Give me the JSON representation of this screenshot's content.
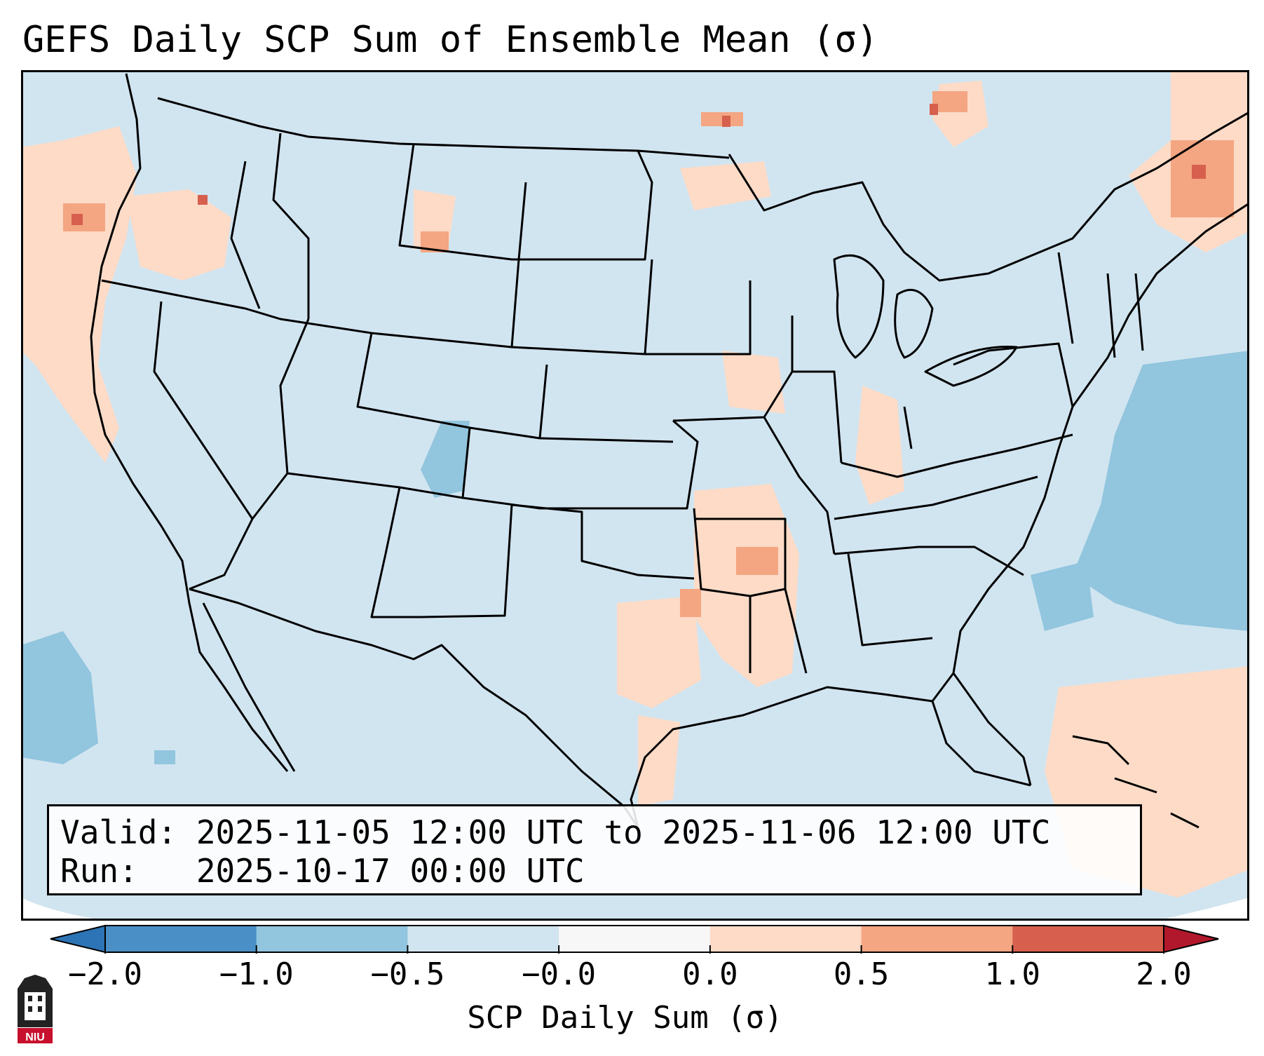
{
  "title": "GEFS Daily SCP Sum of Ensemble Mean (σ)",
  "info": {
    "valid": "Valid: 2025-11-05 12:00 UTC to 2025-11-06 12:00 UTC",
    "run": "Run:   2025-10-17 00:00 UTC"
  },
  "colorbar": {
    "label": "SCP Daily Sum (σ)",
    "ticks": [
      "−2.0",
      "−1.0",
      "−0.5",
      "−0.0",
      "0.0",
      "0.5",
      "1.0",
      "2.0"
    ],
    "colors": [
      "#4a90c6",
      "#92c5de",
      "#d1e5f0",
      "#f7f7f7",
      "#fddbc7",
      "#f4a582",
      "#d6604d"
    ],
    "extend_low_color": "#2c74b5",
    "extend_high_color": "#b2182b"
  },
  "map": {
    "background_color": "#d1e5f0",
    "outline_color": "#000000"
  },
  "logo": {
    "text": "NIU",
    "color": "#c8102e"
  }
}
